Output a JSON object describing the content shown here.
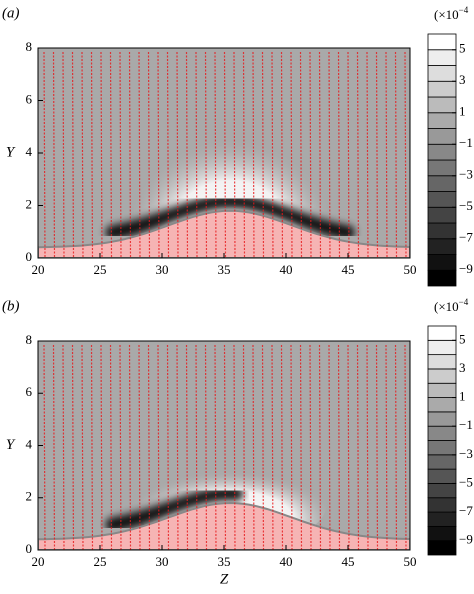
{
  "chart_data": [
    {
      "type": "contour",
      "panel_label": "(a)",
      "xlim": [
        20,
        50
      ],
      "xticks": [
        20,
        25,
        30,
        35,
        40,
        45,
        50
      ],
      "ylim": [
        0,
        8
      ],
      "yticks": [
        0,
        2,
        4,
        6,
        8
      ],
      "ylabel": "Y",
      "colorbar": {
        "clim": [
          -10,
          6
        ],
        "label": "(×10",
        "label_exp": "−4",
        "ticks": [
          {
            "value": -9,
            "label": "−9"
          },
          {
            "value": -7,
            "label": "−7"
          },
          {
            "value": -5,
            "label": "−5"
          },
          {
            "value": -3,
            "label": "−3"
          },
          {
            "value": -1,
            "label": "−1"
          },
          1,
          3,
          5
        ]
      }
    },
    {
      "type": "contour",
      "panel_label": "(b)",
      "xlim": [
        20,
        50
      ],
      "xticks": [
        20,
        25,
        30,
        35,
        40,
        45,
        50
      ],
      "ylim": [
        0,
        8
      ],
      "yticks": [
        0,
        2,
        4,
        6,
        8
      ],
      "ylabel": "Y",
      "xlabel": "Z",
      "colorbar": {
        "clim": [
          -10,
          6
        ],
        "label": "(×10",
        "label_exp": "−4",
        "ticks": [
          {
            "value": -9,
            "label": "−9"
          },
          {
            "value": -7,
            "label": "−7"
          },
          {
            "value": -5,
            "label": "−5"
          },
          {
            "value": -3,
            "label": "−3"
          },
          {
            "value": -1,
            "label": "−1"
          },
          1,
          3,
          5
        ]
      }
    }
  ]
}
